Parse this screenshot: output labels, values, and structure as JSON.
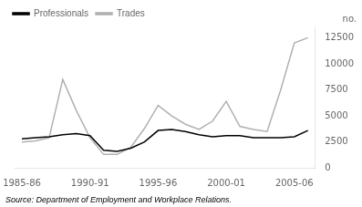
{
  "chart_data": {
    "type": "line",
    "ylabel": "no.",
    "annotations": [
      "Source: Department of Employment and Workplace Relations."
    ],
    "x": [
      1985,
      1986,
      1987,
      1988,
      1989,
      1990,
      1991,
      1992,
      1993,
      1994,
      1995,
      1996,
      1997,
      1998,
      1999,
      2000,
      2001,
      2002,
      2003,
      2004,
      2005,
      2006
    ],
    "series": [
      {
        "name": "Professionals",
        "color": "#000000",
        "values": [
          2800,
          2900,
          3000,
          3200,
          3300,
          3100,
          1700,
          1600,
          1900,
          2500,
          3600,
          3700,
          3500,
          3200,
          3000,
          3100,
          3100,
          2900,
          2900,
          2900,
          3000,
          3600
        ]
      },
      {
        "name": "Trades",
        "color": "#b0b0b0",
        "values": [
          2500,
          2600,
          2900,
          8500,
          5500,
          2900,
          1300,
          1300,
          2000,
          3800,
          6000,
          5000,
          4200,
          3700,
          4500,
          6400,
          4000,
          3700,
          3500,
          7500,
          12000,
          12500
        ]
      }
    ],
    "xlim": [
      1984.5,
      2006.5
    ],
    "xticks": [
      {
        "value": 1985,
        "label": "1985-86"
      },
      {
        "value": 1990,
        "label": "1990-91"
      },
      {
        "value": 1995,
        "label": "1995-96"
      },
      {
        "value": 2000,
        "label": "2000-01"
      },
      {
        "value": 2005,
        "label": "2005-06"
      }
    ],
    "ylim": [
      0,
      13500
    ],
    "yticks": [
      0,
      2500,
      5000,
      7500,
      10000,
      12500
    ],
    "grid": false,
    "legend": "upper left"
  }
}
